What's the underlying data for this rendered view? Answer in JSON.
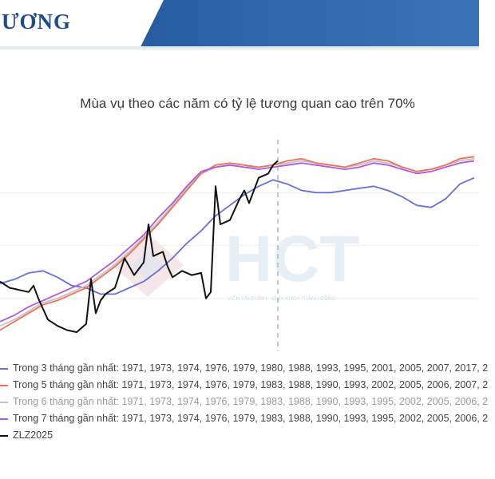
{
  "header": {
    "title": "ƯƠNG",
    "background_color": "#2f67ad"
  },
  "watermark": {
    "logo_text": "HCT",
    "tagline": "VIỆN TÀI CHÍNH - CHÌA KHÓA THÀNH CÔNG"
  },
  "chart_data": {
    "type": "line",
    "title": "Mùa vụ theo các năm có tỷ lệ tương quan cao trên 70%",
    "xlabel": "",
    "ylabel": "",
    "x_range": [
      0,
      100
    ],
    "y_range": [
      0,
      100
    ],
    "grid": "horizontal",
    "reference_line_x": 58,
    "legend_placement": "bottom",
    "series": [
      {
        "name": "Trong 3 tháng gần nhất: 1971, 1973, 1974, 1976, 1979, 1980, 1988, 1993, 1995, 2001, 2005, 2007, 2017, 2",
        "color": "#6a6fd6",
        "x": [
          0,
          3,
          6,
          9,
          12,
          15,
          18,
          21,
          24,
          27,
          30,
          33,
          36,
          39,
          42,
          45,
          48,
          51,
          54,
          57,
          60,
          63,
          66,
          69,
          72,
          75,
          78,
          81,
          84,
          87,
          90,
          93,
          96,
          99
        ],
        "y": [
          32,
          34,
          37,
          38,
          35,
          31,
          30,
          27,
          27,
          30,
          33,
          38,
          44,
          51,
          57,
          64,
          69,
          74,
          78,
          81,
          79,
          76,
          75,
          75,
          76,
          77,
          78,
          76,
          73,
          69,
          68,
          72,
          79,
          82
        ]
      },
      {
        "name": "Trong 5 tháng gần nhất: 1971, 1973, 1974, 1976, 1979, 1983, 1988, 1990, 1993, 2002, 2005, 2006, 2007, 2",
        "color": "#e8745c",
        "x": [
          0,
          3,
          6,
          9,
          12,
          15,
          18,
          21,
          24,
          27,
          30,
          33,
          36,
          39,
          42,
          45,
          48,
          51,
          54,
          57,
          60,
          63,
          66,
          69,
          72,
          75,
          78,
          81,
          84,
          87,
          90,
          93,
          96,
          99
        ],
        "y": [
          10,
          14,
          18,
          22,
          24,
          27,
          30,
          35,
          40,
          46,
          53,
          60,
          68,
          76,
          84,
          88,
          89,
          88,
          87,
          88,
          90,
          91,
          89,
          88,
          87,
          89,
          91,
          90,
          87,
          85,
          86,
          88,
          91,
          92
        ]
      },
      {
        "name": "Trong 6 tháng gần nhất: 1971, 1973, 1974, 1976, 1979, 1983, 1988, 1990, 1993, 1995, 2002, 2005, 2006, 2",
        "color": "#c3c3c3",
        "x": [
          0,
          3,
          6,
          9,
          12,
          15,
          18,
          21,
          24,
          27,
          30,
          33,
          36,
          39,
          42,
          45,
          48,
          51,
          54,
          57,
          60,
          63,
          66,
          69,
          72,
          75,
          78,
          81,
          84,
          87,
          90,
          93,
          96,
          99
        ],
        "y": [
          12,
          15,
          19,
          23,
          25,
          28,
          31,
          36,
          41,
          47,
          54,
          61,
          69,
          77,
          84,
          87,
          88,
          87,
          87,
          88,
          89,
          90,
          89,
          88,
          87,
          88,
          90,
          89,
          87,
          85,
          86,
          88,
          90,
          91
        ]
      },
      {
        "name": "Trong 7 tháng gần nhất: 1971, 1973, 1974, 1976, 1979, 1983, 1988, 1990, 1993, 1995, 2002, 2005, 2006, 2",
        "color": "#b05ad9",
        "x": [
          0,
          3,
          6,
          9,
          12,
          15,
          18,
          21,
          24,
          27,
          30,
          33,
          36,
          39,
          42,
          45,
          48,
          51,
          54,
          57,
          60,
          63,
          66,
          69,
          72,
          75,
          78,
          81,
          84,
          87,
          90,
          93,
          96,
          99
        ],
        "y": [
          14,
          17,
          21,
          24,
          27,
          30,
          33,
          38,
          43,
          49,
          55,
          63,
          70,
          78,
          85,
          87,
          88,
          87,
          86,
          87,
          88,
          89,
          88,
          87,
          86,
          87,
          89,
          88,
          86,
          84,
          85,
          87,
          89,
          90
        ]
      },
      {
        "name": "ZLZ2025",
        "color": "#111111",
        "x": [
          0,
          2,
          4,
          6,
          7,
          8,
          10,
          12,
          14,
          16,
          18,
          19,
          20,
          21,
          22,
          24,
          26,
          28,
          30,
          31,
          32,
          34,
          35,
          36,
          38,
          40,
          42,
          43,
          44,
          45,
          46,
          48,
          50,
          51,
          52,
          54,
          56,
          57,
          58
        ],
        "y": [
          33,
          30,
          29,
          28,
          31,
          25,
          15,
          12,
          10,
          9,
          13,
          34,
          18,
          24,
          27,
          30,
          44,
          36,
          42,
          60,
          45,
          47,
          40,
          35,
          38,
          36,
          37,
          25,
          28,
          78,
          60,
          62,
          72,
          76,
          70,
          82,
          84,
          88,
          90
        ]
      }
    ]
  }
}
